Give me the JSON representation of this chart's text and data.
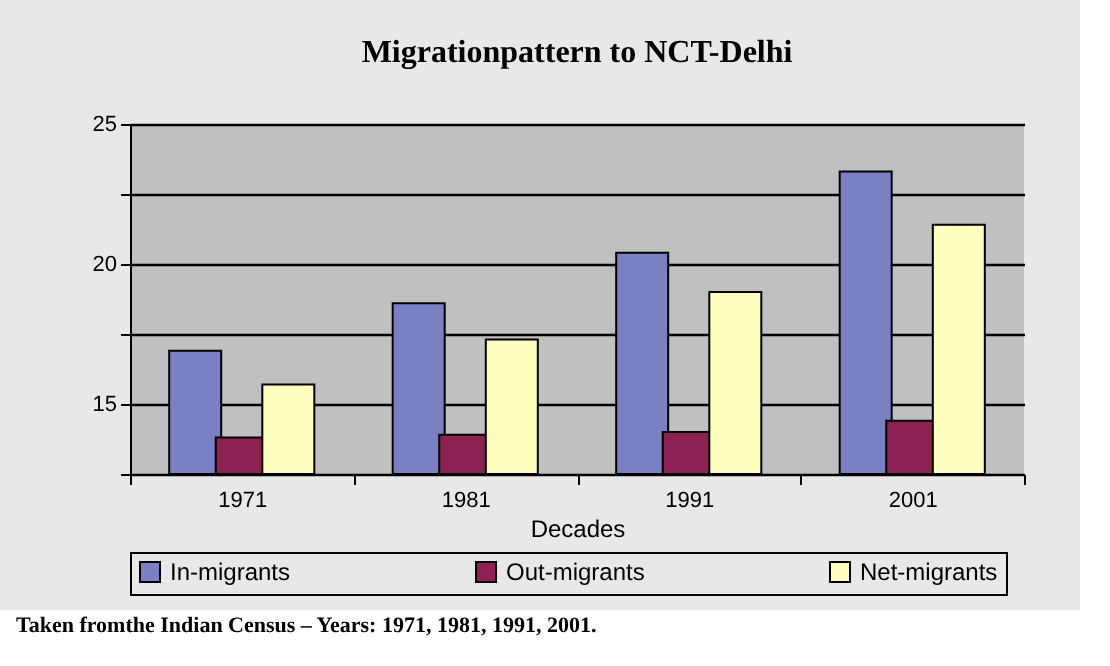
{
  "chart_data": {
    "type": "bar",
    "title": "Migrationpattern to NCT-Delhi",
    "xlabel": "Decades",
    "categories": [
      "1971",
      "1981",
      "1991",
      "2001"
    ],
    "series": [
      {
        "name": "In-migrants",
        "color": "#7b7fc4",
        "values": [
          16.9,
          18.6,
          20.4,
          23.3
        ]
      },
      {
        "name": "Out-migrants",
        "color": "#8b2252",
        "values": [
          13.8,
          13.9,
          14.0,
          14.4
        ]
      },
      {
        "name": "Net-migrants",
        "color": "#ffffc0",
        "values": [
          15.7,
          17.3,
          19.0,
          21.4
        ]
      }
    ],
    "ylim": [
      12.5,
      25
    ],
    "yticks": [
      {
        "value": 12.5,
        "label": null
      },
      15,
      {
        "value": 17.5,
        "label": null
      },
      20,
      {
        "value": 22.5,
        "label": null
      },
      25
    ],
    "grid": "y",
    "legend": "bottom",
    "annotations": [
      "Taken fromthe Indian Census – Years: 1971, 1981, 1991, 2001."
    ]
  }
}
